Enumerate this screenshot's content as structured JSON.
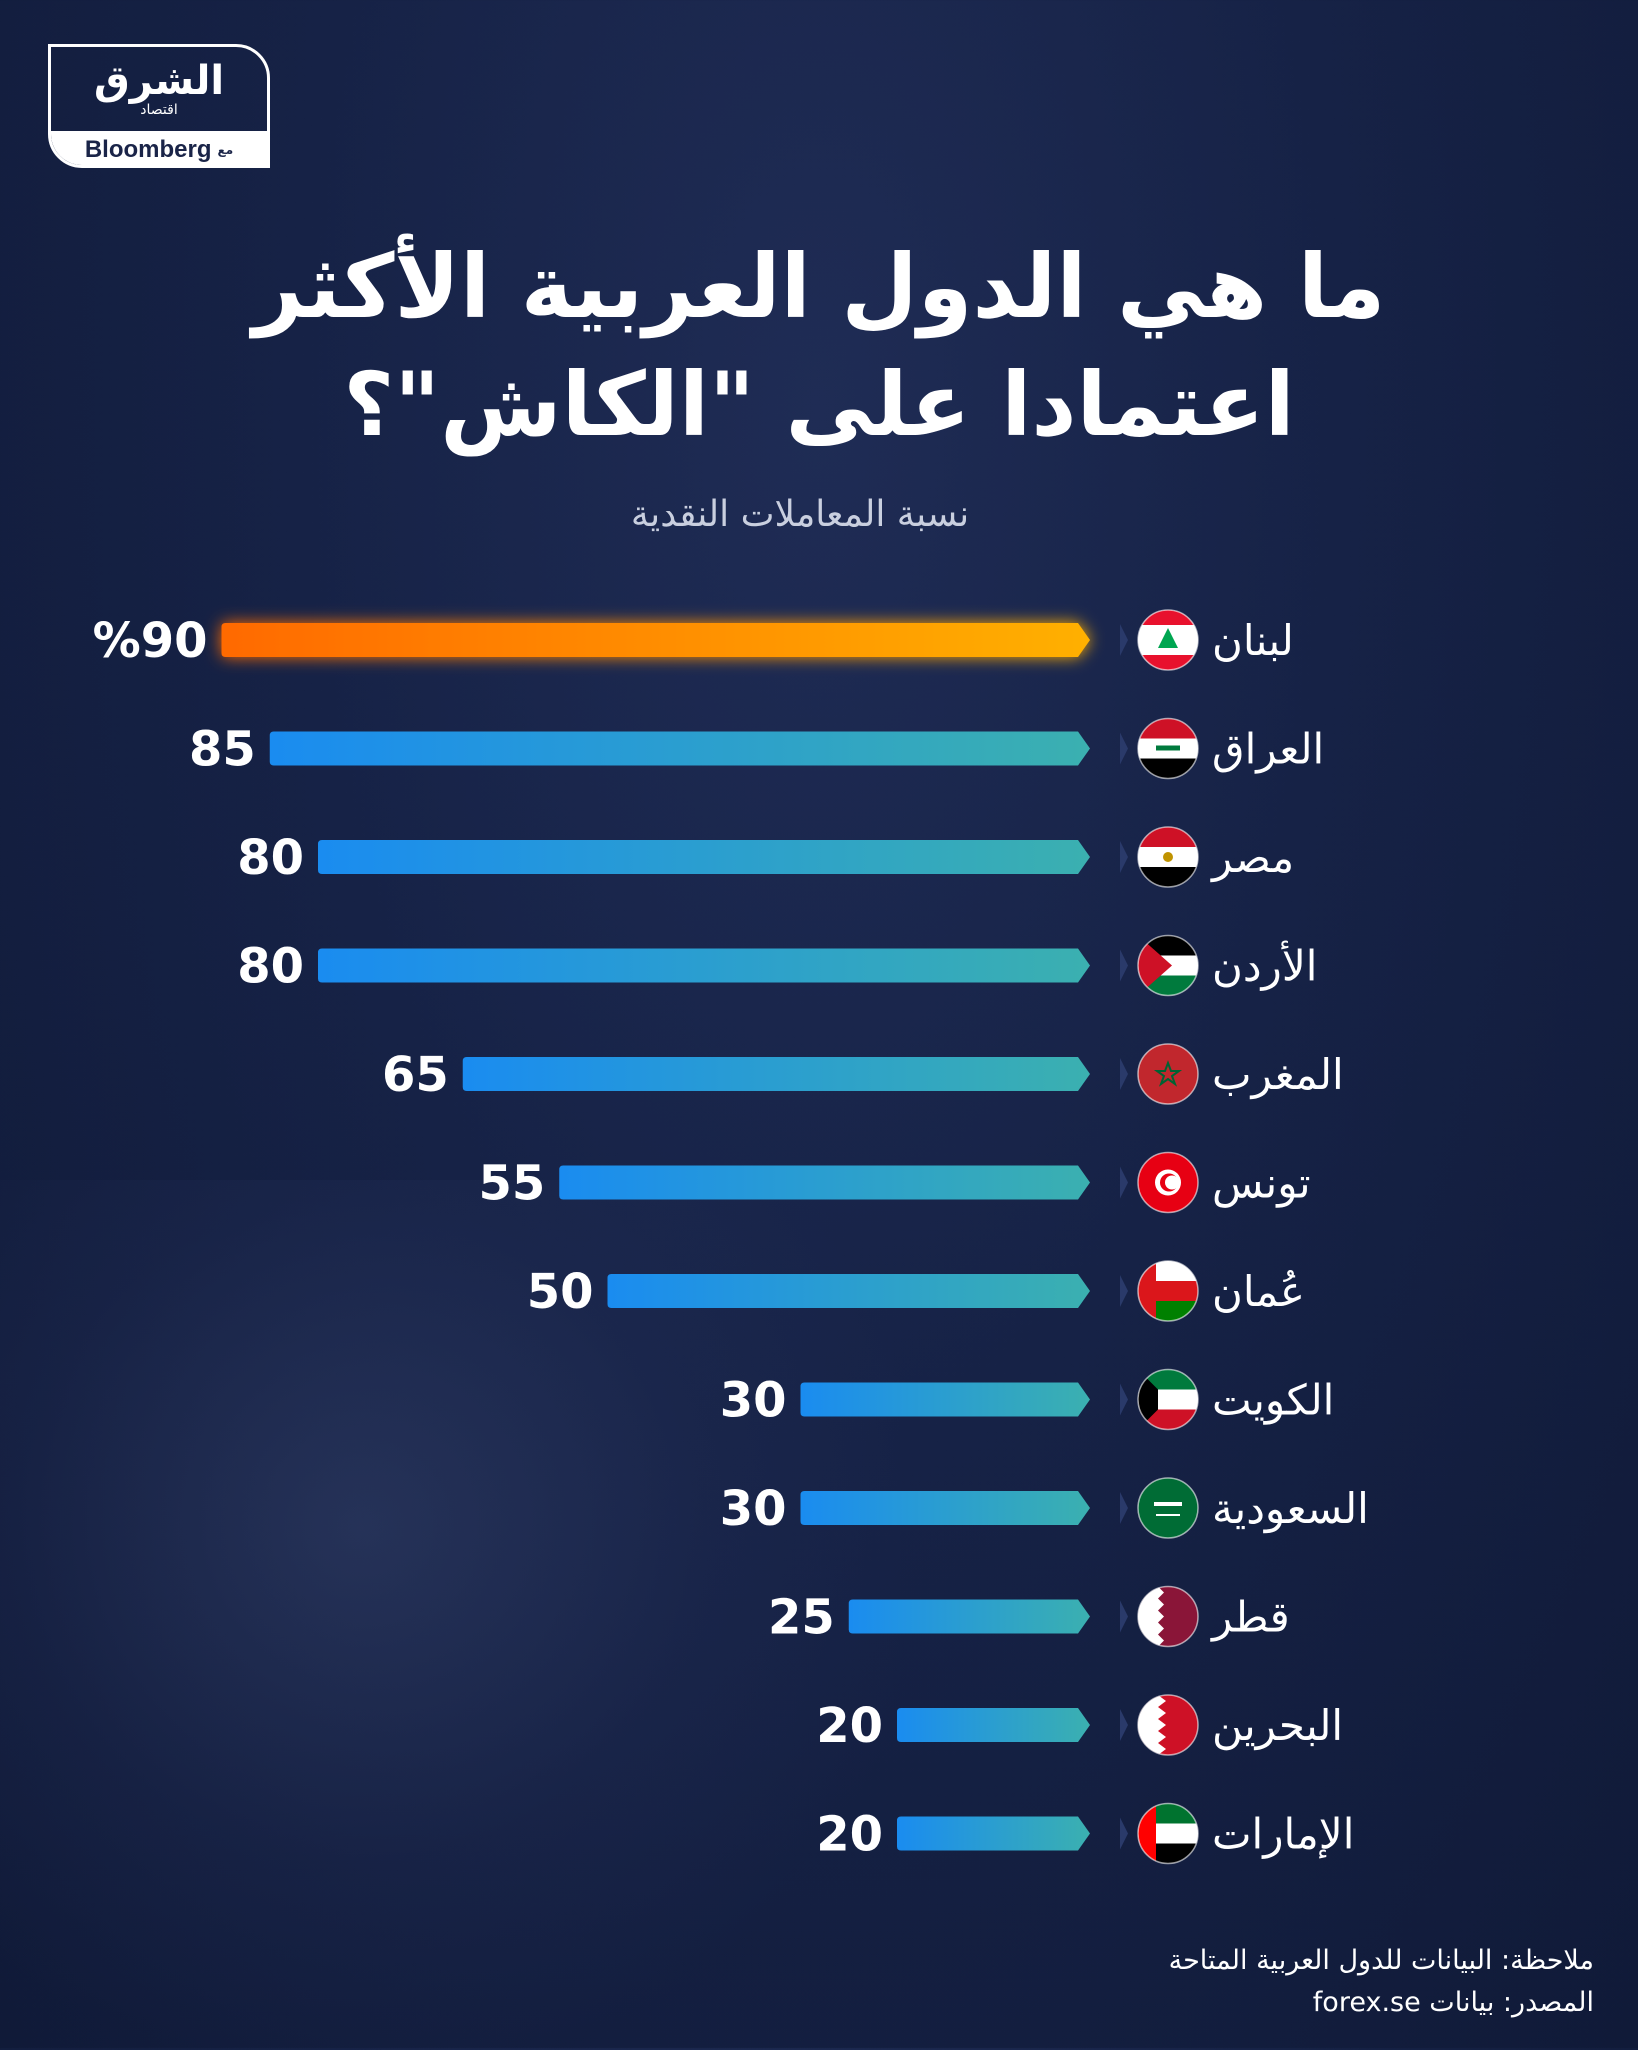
{
  "logo": {
    "arabic": "الشرق",
    "arabic_sub": "اقتصاد",
    "with": "مع",
    "brand": "Bloomberg"
  },
  "title_line1": "ما هي الدول العربية الأكثر",
  "title_line2": "اعتمادا على \"الكاش\"؟",
  "subtitle": "نسبة المعاملات النقدية",
  "note": "ملاحظة: البيانات للدول العربية المتاحة",
  "source": "المصدر: بيانات forex.se",
  "colors": {
    "highlight_start": "#ff6a00",
    "highlight_end": "#ffb000",
    "bar_start": "#1a8cf0",
    "bar_end": "#3bb0b0"
  },
  "chart_data": {
    "type": "bar",
    "orientation": "horizontal",
    "title": "ما هي الدول العربية الأكثر اعتمادا على \"الكاش\"؟",
    "ylabel": "نسبة المعاملات النقدية",
    "categories": [
      "لبنان",
      "العراق",
      "مصر",
      "الأردن",
      "المغرب",
      "تونس",
      "عُمان",
      "الكويت",
      "السعودية",
      "قطر",
      "البحرين",
      "الإمارات"
    ],
    "values": [
      90,
      85,
      80,
      80,
      65,
      55,
      50,
      30,
      30,
      25,
      20,
      20
    ],
    "value_labels": [
      "%90",
      "85",
      "80",
      "80",
      "65",
      "55",
      "50",
      "30",
      "30",
      "25",
      "20",
      "20"
    ],
    "flags": [
      "lebanon",
      "iraq",
      "egypt",
      "jordan",
      "morocco",
      "tunisia",
      "oman",
      "kuwait",
      "saudi",
      "qatar",
      "bahrain",
      "uae"
    ],
    "highlight_index": 0,
    "xlim": [
      0,
      100
    ],
    "grid": false,
    "legend": "none"
  }
}
